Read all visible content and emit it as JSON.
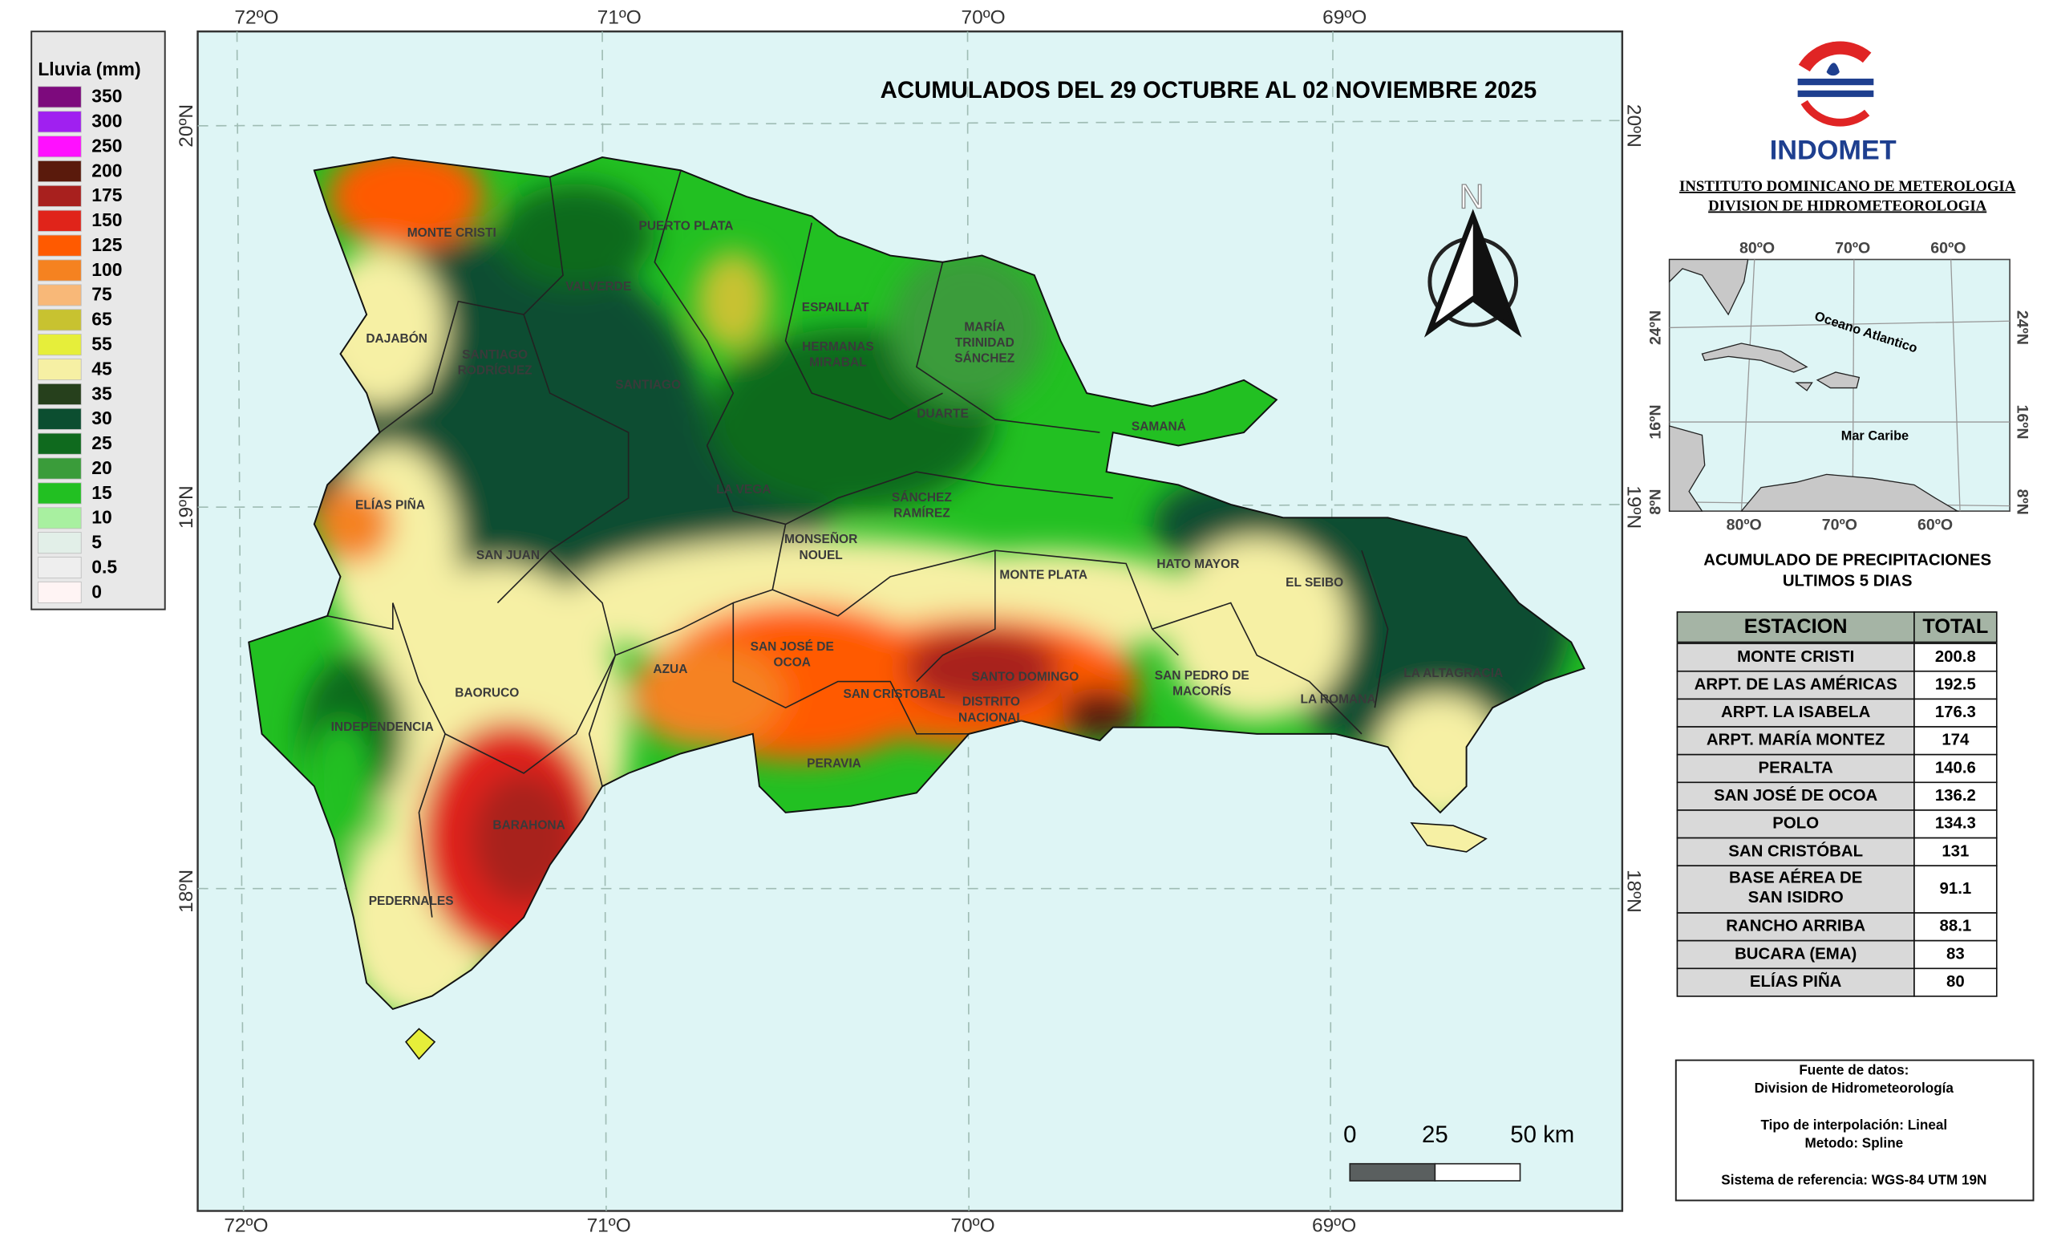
{
  "legend": {
    "title": "Lluvia (mm)",
    "items": [
      {
        "label": 350,
        "color": "#7d0a7d"
      },
      {
        "label": 300,
        "color": "#a020f0"
      },
      {
        "label": 250,
        "color": "#ff10ff"
      },
      {
        "label": 200,
        "color": "#5a1a0c"
      },
      {
        "label": 175,
        "color": "#a8201e"
      },
      {
        "label": 150,
        "color": "#e0241a"
      },
      {
        "label": 125,
        "color": "#ff5a00"
      },
      {
        "label": 100,
        "color": "#f58220"
      },
      {
        "label": 75,
        "color": "#f8b878"
      },
      {
        "label": 65,
        "color": "#c8c230"
      },
      {
        "label": 55,
        "color": "#e6ee3a"
      },
      {
        "label": 45,
        "color": "#f6f0a4"
      },
      {
        "label": 35,
        "color": "#26401c"
      },
      {
        "label": 30,
        "color": "#0c4e30"
      },
      {
        "label": 25,
        "color": "#0f6a1e"
      },
      {
        "label": 20,
        "color": "#3a9c3a"
      },
      {
        "label": 15,
        "color": "#22c022"
      },
      {
        "label": 10,
        "color": "#a8f0a0"
      },
      {
        "label": 5,
        "color": "#e2efe8"
      },
      {
        "label": 0.5,
        "color": "#eeeeee"
      },
      {
        "label": 0,
        "color": "#fff4f4"
      }
    ]
  },
  "map": {
    "title": "ACUMULADOS DEL  29 OCTUBRE AL 02 NOVIEMBRE 2025",
    "longitude_labels": [
      "72ºO",
      "71ºO",
      "70ºO",
      "69ºO"
    ],
    "latitude_labels": [
      "20ºN",
      "19ºN",
      "18ºN"
    ],
    "north_label": "N",
    "scale_labels": [
      0,
      25,
      "50 km"
    ],
    "provinces": [
      [
        "MONTE CRISTI"
      ],
      [
        "PUERTO PLATA"
      ],
      [
        "VALVERDE"
      ],
      [
        "ESPAILLAT"
      ],
      [
        "MARÍA",
        "TRINIDAD",
        "SÁNCHEZ"
      ],
      [
        "DAJABÓN"
      ],
      [
        "SANTIAGO",
        "RODRÍGUEZ"
      ],
      [
        "HERMANAS",
        "MIRABAL"
      ],
      [
        "SANTIAGO"
      ],
      [
        "DUARTE"
      ],
      [
        "SAMANÁ"
      ],
      [
        "LA VEGA"
      ],
      [
        "ELÍAS PIÑA"
      ],
      [
        "SÁNCHEZ",
        "RAMÍREZ"
      ],
      [
        "MONSEÑOR",
        "NOUEL"
      ],
      [
        "SAN JUAN"
      ],
      [
        "MONTE PLATA"
      ],
      [
        "HATO MAYOR"
      ],
      [
        "EL SEIBO"
      ],
      [
        "SAN JOSÉ DE",
        "OCOA"
      ],
      [
        "AZUA"
      ],
      [
        "SAN CRISTOBAL"
      ],
      [
        "SANTO DOMINGO"
      ],
      [
        "DISTRITO",
        "NACIONAL"
      ],
      [
        "SAN PEDRO DE",
        "MACORÍS"
      ],
      [
        "LA ROMANA"
      ],
      [
        "LA ALTAGRACIA"
      ],
      [
        "BAORUCO"
      ],
      [
        "INDEPENDENCIA"
      ],
      [
        "PERAVIA"
      ],
      [
        "BARAHONA"
      ],
      [
        "PEDERNALES"
      ]
    ]
  },
  "header": {
    "logo_text": "INDOMET",
    "institute": "INSTITUTO DOMINICANO DE METEROLOGIA",
    "division": "DIVISION DE HIDROMETEOROLOGIA"
  },
  "inset": {
    "longitude_labels": [
      "80ºO",
      "70ºO",
      "60ºO"
    ],
    "latitude_labels": [
      "24ºN",
      "16ºN",
      "8ºN"
    ],
    "ocean_label": "Oceano Atlantico",
    "sea_label": "Mar Caribe"
  },
  "table": {
    "title_lines": [
      "ACUMULADO DE PRECIPITACIONES",
      "ULTIMOS 5 DIAS"
    ],
    "columns": [
      "ESTACION",
      "TOTAL"
    ],
    "rows": [
      [
        "MONTE CRISTI",
        200.8
      ],
      [
        "ARPT. DE LAS AMÉRICAS",
        192.5
      ],
      [
        "ARPT. LA ISABELA",
        176.3
      ],
      [
        "ARPT. MARÍA MONTEZ",
        174
      ],
      [
        "PERALTA",
        140.6
      ],
      [
        "SAN JOSÉ DE OCOA",
        136.2
      ],
      [
        "POLO",
        134.3
      ],
      [
        "SAN CRISTÓBAL",
        131
      ],
      [
        "BASE AÉREA DE SAN ISIDRO",
        91.1
      ],
      [
        "RANCHO ARRIBA",
        88.1
      ],
      [
        "BUCARA (EMA)",
        83
      ],
      [
        "ELÍAS PIÑA",
        80
      ]
    ]
  },
  "source": {
    "lines": [
      "Fuente de datos:",
      "Division de Hidrometeorología",
      "Tipo de interpolación: Lineal",
      "Metodo: Spline",
      "Sistema de referencia: WGS-84 UTM 19N"
    ]
  }
}
